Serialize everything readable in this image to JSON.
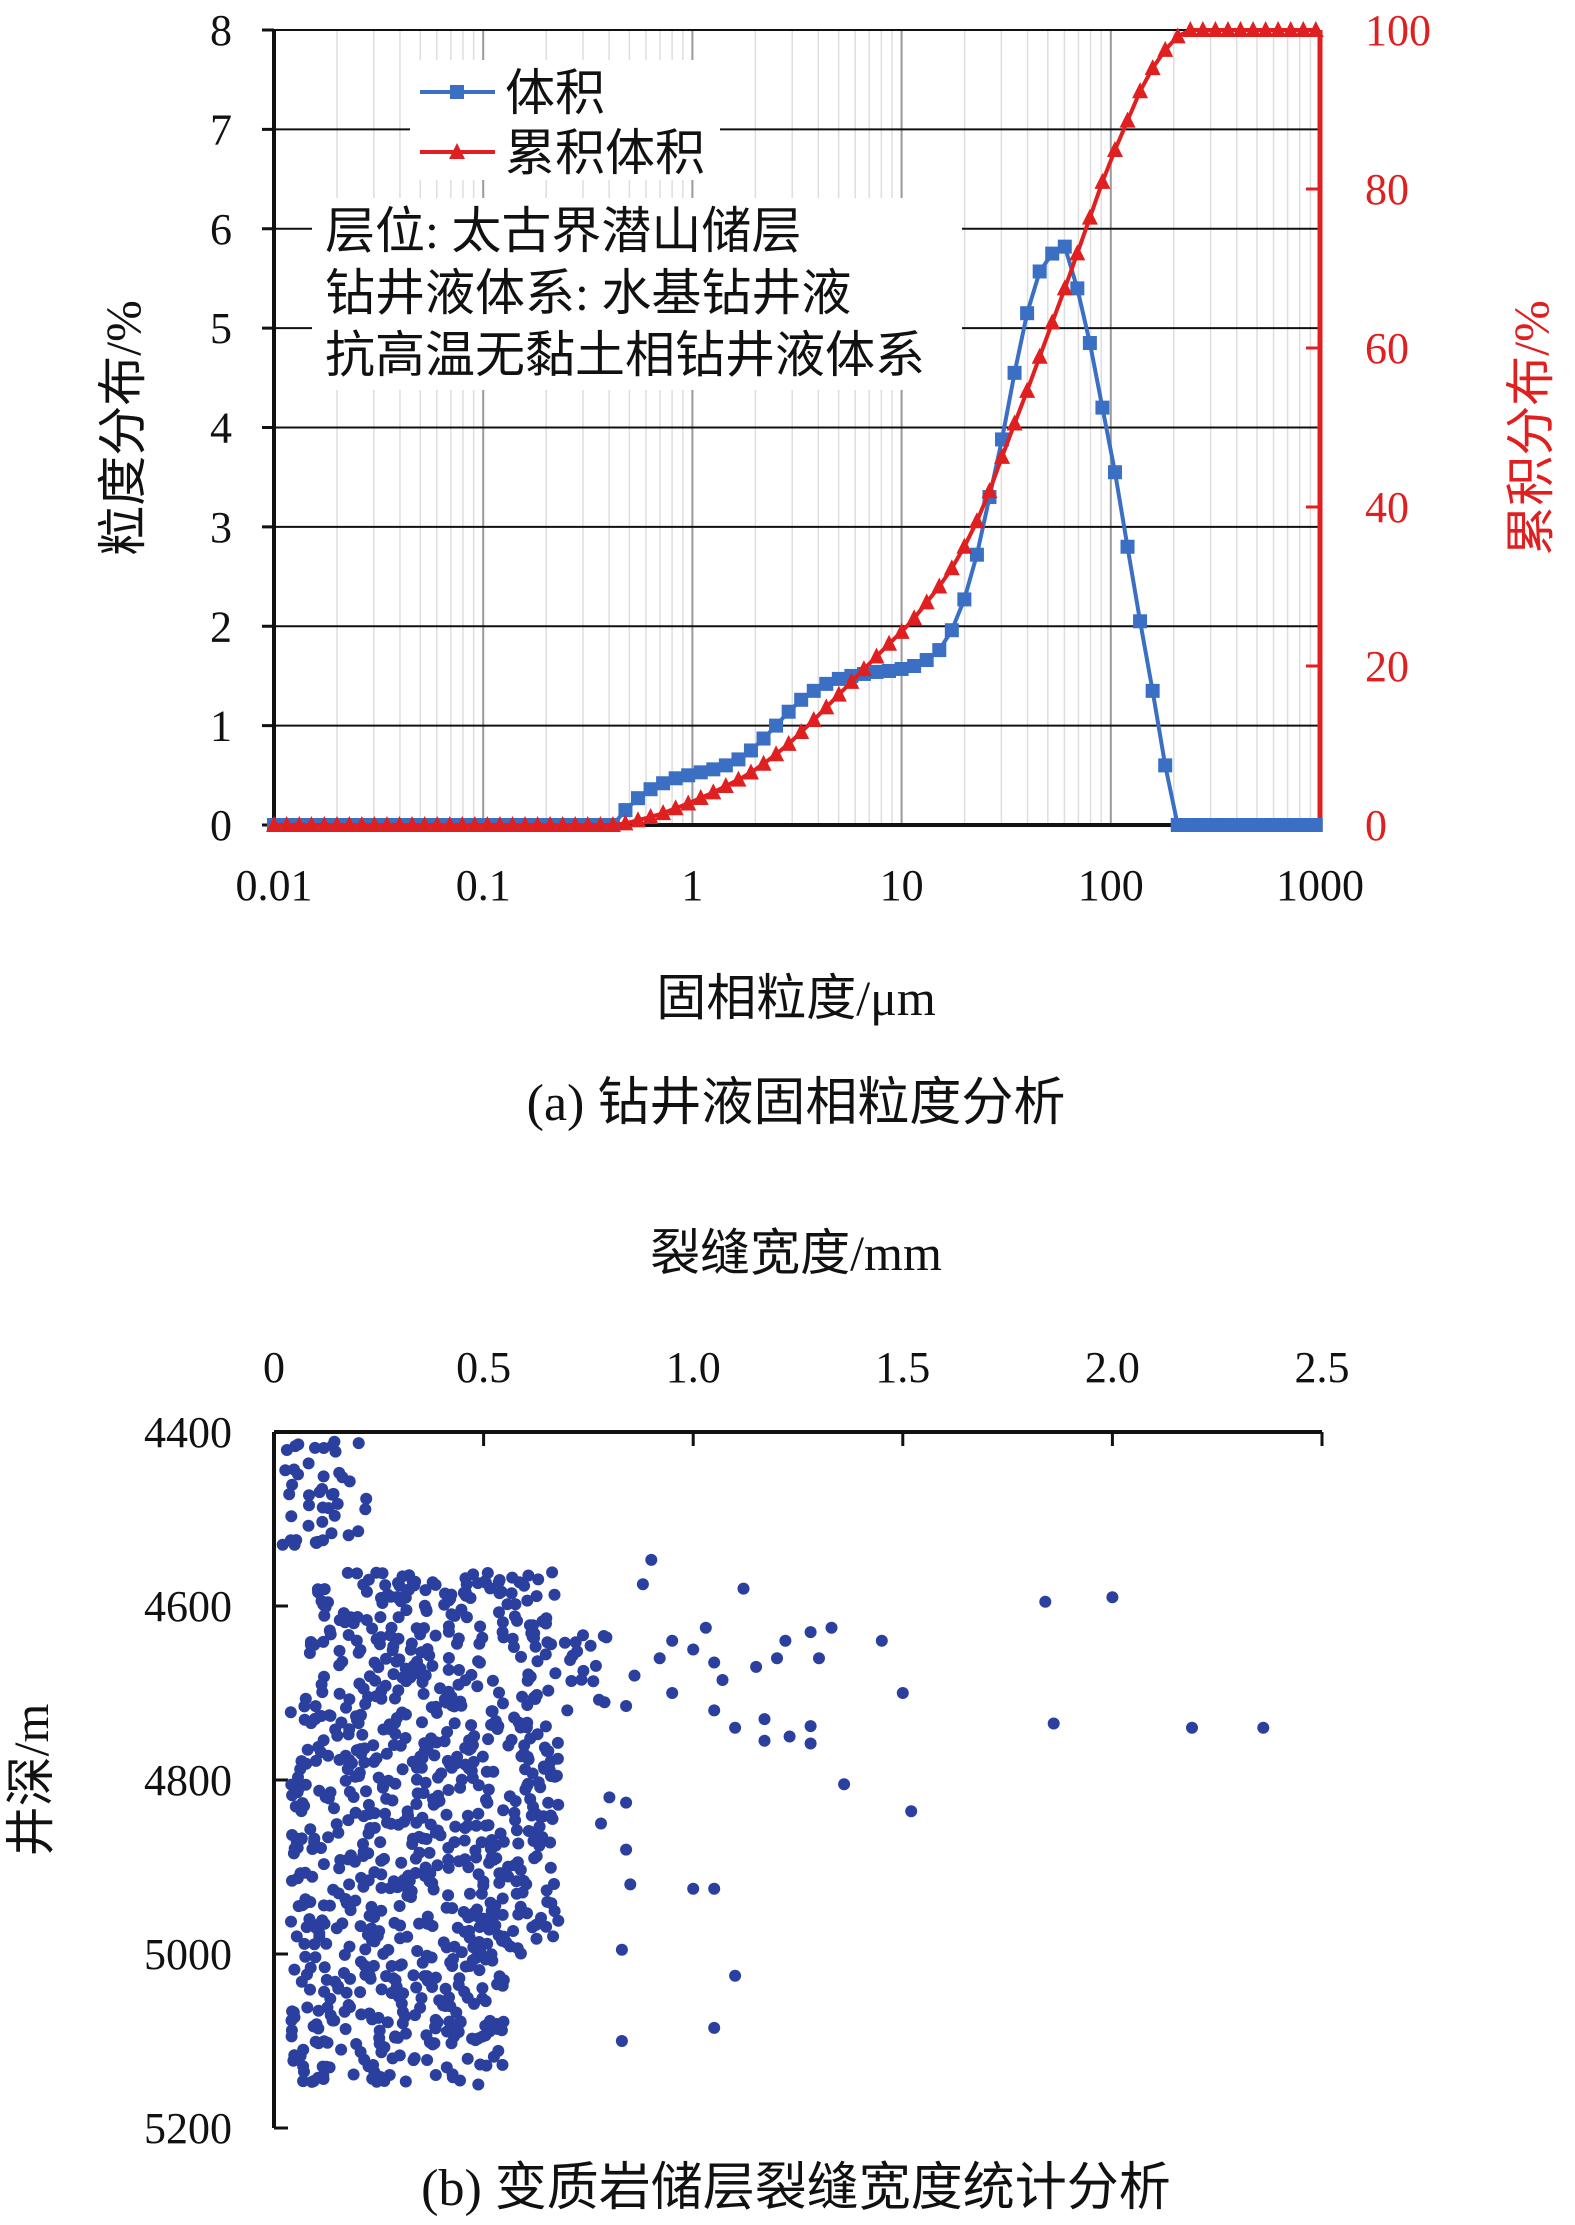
{
  "chart_data": [
    {
      "type": "line",
      "title": "(a) 钻井液固相粒度分析",
      "xlabel": "固相粒度/μm",
      "ylabel": "粒度分布/%",
      "ylabel_right": "累积分布/%",
      "xscale": "log",
      "xlim": [
        0.01,
        1000
      ],
      "ylim": [
        0,
        8
      ],
      "ylim_right": [
        0,
        100
      ],
      "xticks": [
        "0.01",
        "0.1",
        "1",
        "10",
        "100",
        "1000"
      ],
      "yticks": [
        "0",
        "1",
        "2",
        "3",
        "4",
        "5",
        "6",
        "7",
        "8"
      ],
      "yticks_right": [
        "0",
        "20",
        "40",
        "60",
        "80",
        "100"
      ],
      "grid": true,
      "legend_position": "top-left",
      "annotation": [
        "层位: 太古界潜山储层",
        "钻井液体系: 水基钻井液",
        "抗高温无黏土相钻井液体系"
      ],
      "series": [
        {
          "name": "体积",
          "axis": "left",
          "color": "#3a6fc4",
          "marker": "square",
          "x": [
            0.01,
            0.0115,
            0.0132,
            0.0151,
            0.0174,
            0.02,
            0.0229,
            0.0263,
            0.0302,
            0.0347,
            0.0398,
            0.0457,
            0.0525,
            0.0603,
            0.0692,
            0.0794,
            0.0912,
            0.1047,
            0.1202,
            0.138,
            0.1585,
            0.182,
            0.2089,
            0.2399,
            0.2754,
            0.3162,
            0.3631,
            0.4169,
            0.4786,
            0.5495,
            0.631,
            0.7244,
            0.8318,
            0.955,
            1.096,
            1.259,
            1.445,
            1.66,
            1.905,
            2.188,
            2.512,
            2.884,
            3.311,
            3.802,
            4.365,
            5.012,
            5.754,
            6.607,
            7.586,
            8.71,
            10.0,
            11.48,
            13.18,
            15.14,
            17.38,
            19.95,
            22.91,
            26.3,
            30.2,
            34.67,
            39.81,
            45.71,
            52.48,
            60.26,
            69.18,
            79.43,
            91.2,
            104.7,
            120.2,
            138.0,
            158.5,
            182.0,
            208.9,
            239.9,
            275.4,
            316.2,
            363.1,
            416.9,
            478.6,
            549.5,
            631.0,
            724.4,
            831.8,
            955.0
          ],
          "y": [
            0,
            0,
            0,
            0,
            0,
            0,
            0,
            0,
            0,
            0,
            0,
            0,
            0,
            0,
            0,
            0,
            0,
            0,
            0,
            0,
            0,
            0,
            0,
            0,
            0,
            0,
            0,
            0,
            0.15,
            0.27,
            0.36,
            0.42,
            0.47,
            0.5,
            0.53,
            0.56,
            0.6,
            0.66,
            0.75,
            0.87,
            1.0,
            1.14,
            1.26,
            1.35,
            1.42,
            1.47,
            1.5,
            1.52,
            1.54,
            1.55,
            1.57,
            1.6,
            1.66,
            1.76,
            1.96,
            2.27,
            2.72,
            3.3,
            3.88,
            4.55,
            5.15,
            5.57,
            5.75,
            5.82,
            5.4,
            4.85,
            4.2,
            3.55,
            2.8,
            2.05,
            1.35,
            0.6,
            0,
            0,
            0,
            0,
            0,
            0,
            0,
            0,
            0,
            0,
            0,
            0
          ]
        },
        {
          "name": "累积体积",
          "axis": "right",
          "color": "#e02020",
          "marker": "triangle",
          "x": [
            0.01,
            0.0115,
            0.0132,
            0.0151,
            0.0174,
            0.02,
            0.0229,
            0.0263,
            0.0302,
            0.0347,
            0.0398,
            0.0457,
            0.0525,
            0.0603,
            0.0692,
            0.0794,
            0.0912,
            0.1047,
            0.1202,
            0.138,
            0.1585,
            0.182,
            0.2089,
            0.2399,
            0.2754,
            0.3162,
            0.3631,
            0.4169,
            0.4786,
            0.5495,
            0.631,
            0.7244,
            0.8318,
            0.955,
            1.096,
            1.259,
            1.445,
            1.66,
            1.905,
            2.188,
            2.512,
            2.884,
            3.311,
            3.802,
            4.365,
            5.012,
            5.754,
            6.607,
            7.586,
            8.71,
            10.0,
            11.48,
            13.18,
            15.14,
            17.38,
            19.95,
            22.91,
            26.3,
            30.2,
            34.67,
            39.81,
            45.71,
            52.48,
            60.26,
            69.18,
            79.43,
            91.2,
            104.7,
            120.2,
            138.0,
            158.5,
            182.0,
            208.9,
            239.9,
            275.4,
            316.2,
            363.1,
            416.9,
            478.6,
            549.5,
            631.0,
            724.4,
            831.8,
            955.0
          ],
          "y": [
            0,
            0,
            0,
            0,
            0,
            0,
            0,
            0,
            0,
            0,
            0,
            0,
            0,
            0,
            0,
            0,
            0,
            0,
            0,
            0,
            0,
            0,
            0,
            0,
            0,
            0,
            0,
            0,
            0.2,
            0.6,
            1.0,
            1.5,
            2.1,
            2.7,
            3.4,
            4.1,
            4.9,
            5.7,
            6.6,
            7.7,
            8.9,
            10.2,
            11.7,
            13.2,
            14.8,
            16.4,
            18.0,
            19.6,
            21.2,
            22.8,
            24.3,
            26.0,
            28.0,
            30.0,
            32.3,
            35.0,
            38.2,
            42.0,
            46.3,
            50.5,
            54.6,
            58.9,
            63.2,
            67.5,
            71.9,
            76.4,
            80.9,
            84.9,
            88.6,
            92.3,
            95.2,
            97.5,
            99.2,
            100,
            100,
            100,
            100,
            100,
            100,
            100,
            100,
            100,
            100,
            100
          ]
        }
      ]
    },
    {
      "type": "scatter",
      "title": "(b) 变质岩储层裂缝宽度统计分析",
      "xlabel": "裂缝宽度/mm",
      "ylabel": "井深/m",
      "xlim": [
        0,
        2.5
      ],
      "ylim": [
        4400,
        5200
      ],
      "y_inverted": true,
      "x_axis_position": "top",
      "xticks": [
        "0",
        "0.5",
        "1.0",
        "1.5",
        "2.0",
        "2.5"
      ],
      "yticks": [
        "4400",
        "4600",
        "4800",
        "5000",
        "5200"
      ],
      "grid": false,
      "point_color": "#2a3f9e",
      "seed": 20231,
      "notes": "Dense cloud of ~1000 measurements; clusters listed as depth ranges (m) with width ranges (mm) and counts.",
      "clusters": [
        {
          "depth": [
            4410,
            4530
          ],
          "width": [
            0.02,
            0.22
          ],
          "count": 45
        },
        {
          "depth": [
            4560,
            4640
          ],
          "width": [
            0.1,
            0.68
          ],
          "count": 120
        },
        {
          "depth": [
            4630,
            4720
          ],
          "width": [
            0.05,
            0.8
          ],
          "count": 120
        },
        {
          "depth": [
            4720,
            5000
          ],
          "width": [
            0.04,
            0.68
          ],
          "count": 470
        },
        {
          "depth": [
            5000,
            5150
          ],
          "width": [
            0.04,
            0.55
          ],
          "count": 200
        }
      ],
      "outliers": [
        {
          "x": 0.9,
          "y": 4547
        },
        {
          "x": 0.88,
          "y": 4575
        },
        {
          "x": 1.12,
          "y": 4580
        },
        {
          "x": 0.95,
          "y": 4640
        },
        {
          "x": 0.92,
          "y": 4660
        },
        {
          "x": 1.0,
          "y": 4650
        },
        {
          "x": 1.05,
          "y": 4665
        },
        {
          "x": 1.15,
          "y": 4670
        },
        {
          "x": 1.2,
          "y": 4660
        },
        {
          "x": 1.22,
          "y": 4640
        },
        {
          "x": 1.28,
          "y": 4630
        },
        {
          "x": 1.33,
          "y": 4625
        },
        {
          "x": 1.45,
          "y": 4640
        },
        {
          "x": 1.5,
          "y": 4700
        },
        {
          "x": 0.86,
          "y": 4680
        },
        {
          "x": 0.95,
          "y": 4700
        },
        {
          "x": 0.84,
          "y": 4715
        },
        {
          "x": 1.05,
          "y": 4720
        },
        {
          "x": 1.1,
          "y": 4740
        },
        {
          "x": 1.23,
          "y": 4750
        },
        {
          "x": 1.17,
          "y": 4730
        },
        {
          "x": 1.28,
          "y": 4738
        },
        {
          "x": 1.03,
          "y": 4625
        },
        {
          "x": 1.07,
          "y": 4685
        },
        {
          "x": 1.84,
          "y": 4595
        },
        {
          "x": 2.0,
          "y": 4590
        },
        {
          "x": 1.86,
          "y": 4735
        },
        {
          "x": 2.19,
          "y": 4740
        },
        {
          "x": 2.36,
          "y": 4740
        },
        {
          "x": 1.28,
          "y": 4758
        },
        {
          "x": 1.3,
          "y": 4660
        },
        {
          "x": 1.17,
          "y": 4755
        },
        {
          "x": 1.36,
          "y": 4805
        },
        {
          "x": 1.52,
          "y": 4836
        },
        {
          "x": 0.8,
          "y": 4820
        },
        {
          "x": 0.84,
          "y": 4826
        },
        {
          "x": 0.78,
          "y": 4850
        },
        {
          "x": 0.84,
          "y": 4880
        },
        {
          "x": 0.85,
          "y": 4920
        },
        {
          "x": 1.0,
          "y": 4925
        },
        {
          "x": 1.05,
          "y": 4925
        },
        {
          "x": 0.83,
          "y": 4995
        },
        {
          "x": 1.1,
          "y": 5025
        },
        {
          "x": 1.05,
          "y": 5085
        },
        {
          "x": 0.83,
          "y": 5100
        }
      ]
    }
  ]
}
